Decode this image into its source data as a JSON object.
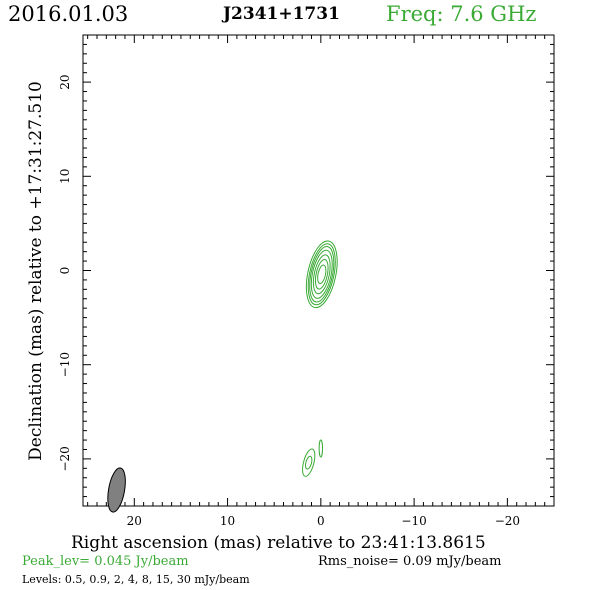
{
  "header": {
    "date": "2016.01.03",
    "source": "J2341+1731",
    "freq": "Freq: 7.6 GHz"
  },
  "footer": {
    "peak": "Peak_lev=  0.045 Jy/beam",
    "rms": "Rms_noise= 0.09 mJy/beam",
    "levels": "Levels: 0.5, 0.9,    2,    4,    8,   15,   30 mJy/beam"
  },
  "colors": {
    "accent": "#3aaa35",
    "contour": "#3aaa35",
    "beam": "#808080",
    "text": "#000000"
  },
  "chart_data": {
    "type": "contour",
    "title": "J2341+1731",
    "xlabel": "Right ascension (mas) relative to 23:41:13.8615",
    "ylabel": "Declination (mas) relative to +17:31:27.510",
    "xlim": [
      25.5,
      -25
    ],
    "ylim": [
      -25,
      25
    ],
    "xticks": [
      20,
      10,
      0,
      -10,
      -20
    ],
    "yticks": [
      20,
      10,
      0,
      -10,
      -20
    ],
    "xtick_labels": [
      "20",
      "10",
      "0",
      "−10",
      "−20"
    ],
    "ytick_labels": [
      "20",
      "10",
      "0",
      "−10",
      "−20"
    ],
    "contour_levels": [
      0.5,
      0.9,
      2,
      4,
      8,
      15,
      30
    ],
    "level_units": "mJy/beam",
    "components": [
      {
        "x": -0.1,
        "y": -0.4,
        "rx": [
          1.5,
          1.3,
          1.15,
          1.0,
          0.8,
          0.6,
          0.4
        ],
        "ry": [
          3.6,
          3.3,
          3.0,
          2.6,
          2.1,
          1.6,
          1.0
        ],
        "pa": 12
      },
      {
        "x": 1.3,
        "y": -20.4,
        "rx": [
          0.55,
          0.3
        ],
        "ry": [
          1.5,
          0.7
        ],
        "pa": 15
      },
      {
        "x": 0.0,
        "y": -18.9,
        "rx": [
          0.18
        ],
        "ry": [
          0.9
        ],
        "pa": 0
      }
    ],
    "beam": {
      "x": 21.9,
      "y": -23.3,
      "major": 2.5,
      "minor": 0.9,
      "pa": 10
    }
  }
}
